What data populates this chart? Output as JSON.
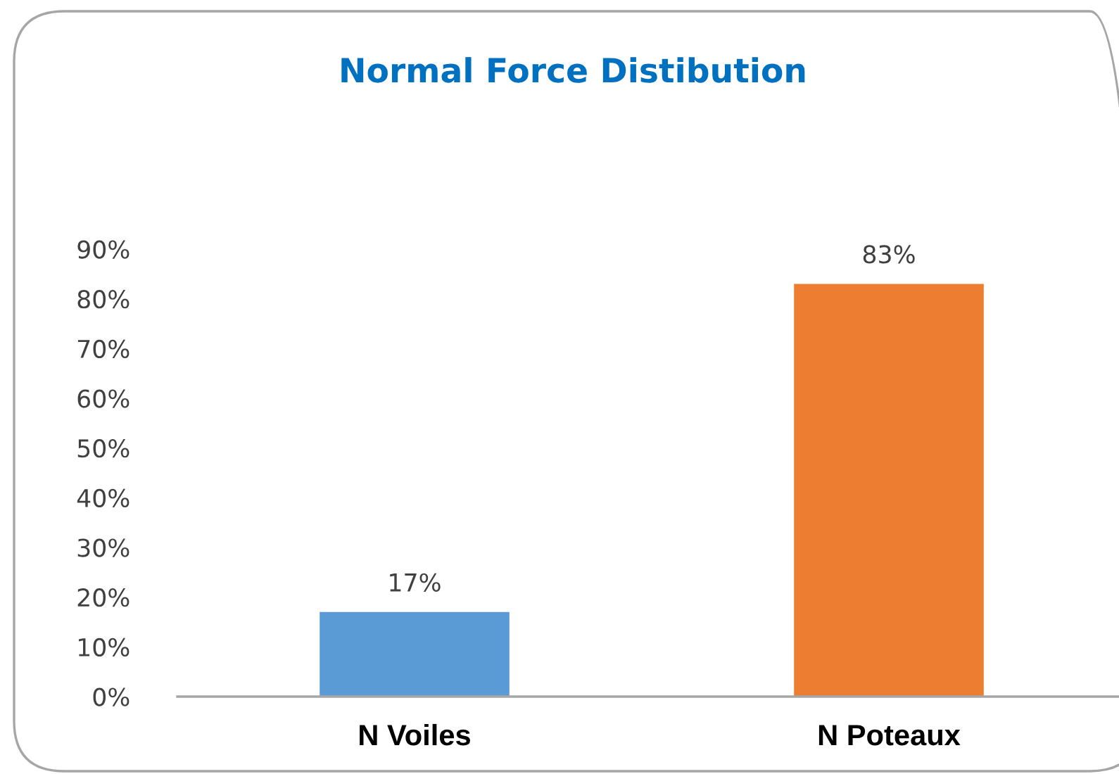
{
  "chart_data": {
    "type": "bar",
    "title": "Normal Force Distibution",
    "categories": [
      "N Voiles",
      "N Poteaux"
    ],
    "values": [
      17,
      83
    ],
    "colors": [
      "#5b9bd5",
      "#ed7d31"
    ],
    "value_labels": [
      "17%",
      "83%"
    ],
    "ylim": [
      0,
      90
    ],
    "yticks": [
      {
        "value": 0,
        "label": "0%"
      },
      {
        "value": 10,
        "label": "10%"
      },
      {
        "value": 20,
        "label": "20%"
      },
      {
        "value": 30,
        "label": "30%"
      },
      {
        "value": 40,
        "label": "40%"
      },
      {
        "value": 50,
        "label": "50%"
      },
      {
        "value": 60,
        "label": "60%"
      },
      {
        "value": 70,
        "label": "70%"
      },
      {
        "value": 80,
        "label": "80%"
      },
      {
        "value": 90,
        "label": "90%"
      }
    ],
    "grid": false,
    "legend": false
  }
}
